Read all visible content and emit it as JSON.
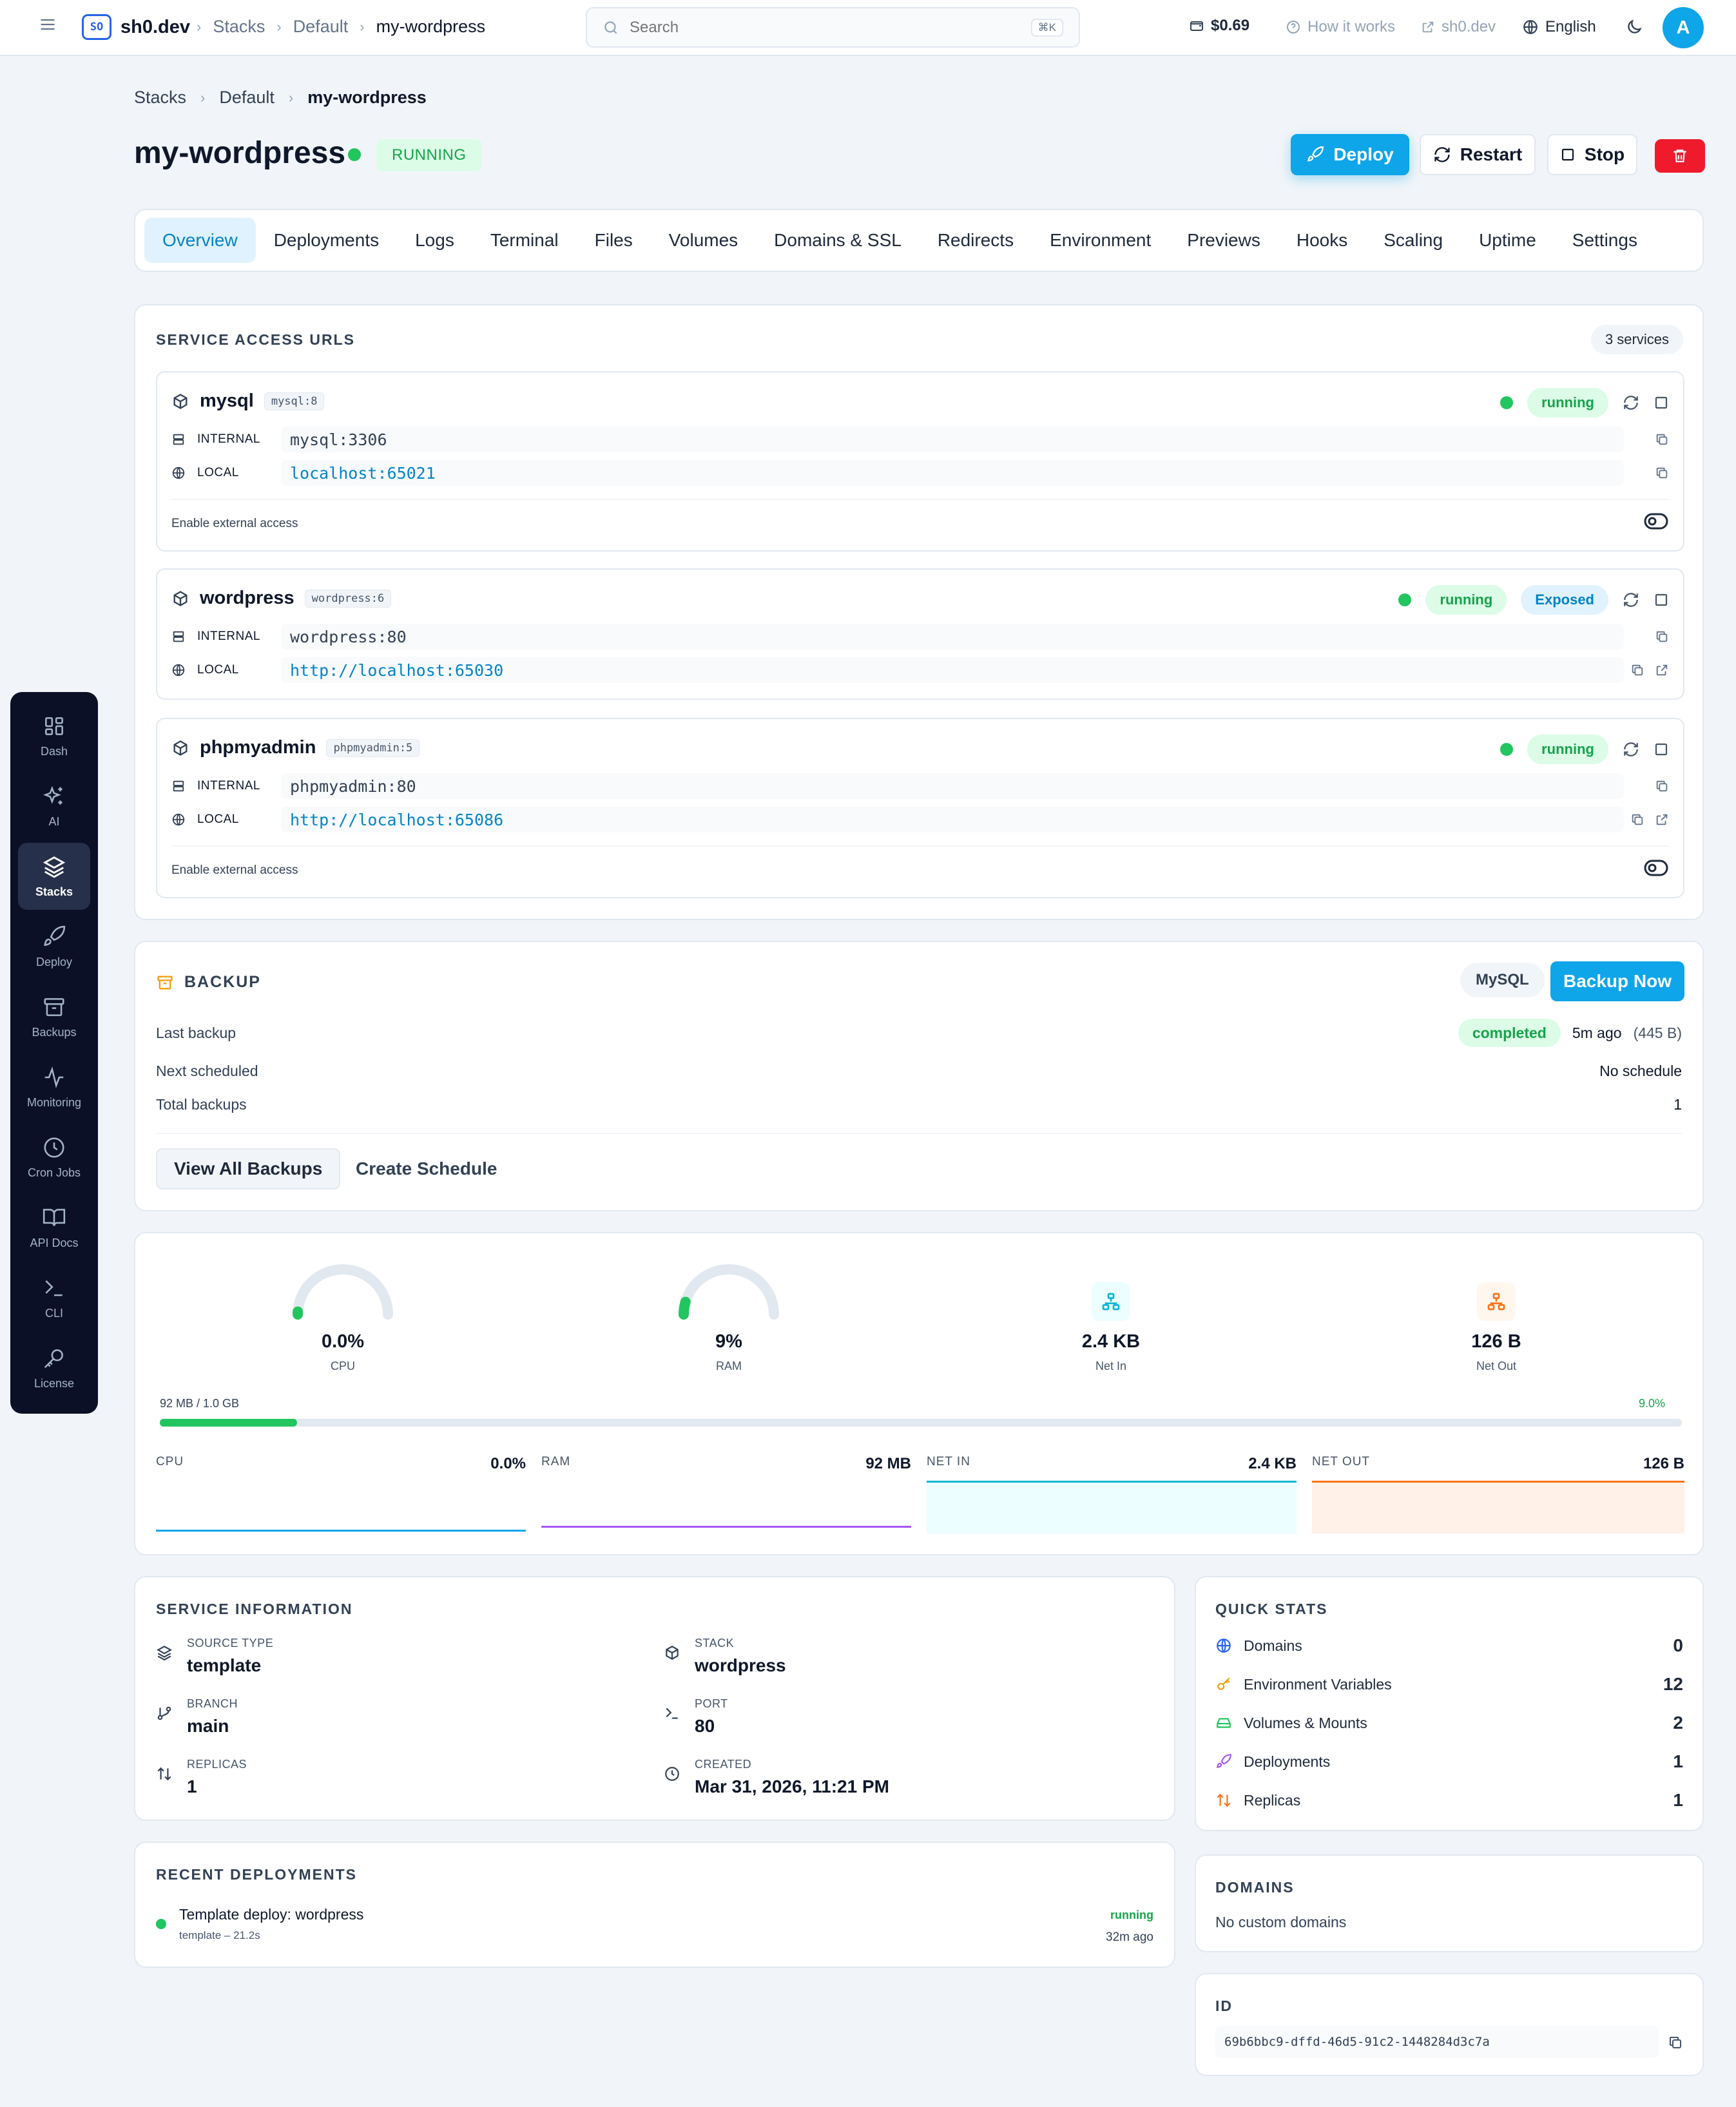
{
  "topbar": {
    "logo_text": "SO",
    "brand": "sh0.dev",
    "crumbs": [
      "Stacks",
      "Default",
      "my-wordpress"
    ],
    "search_placeholder": "Search",
    "search_shortcut": "⌘K",
    "balance": "$0.69",
    "how_it_works": "How it works",
    "site_link": "sh0.dev",
    "language": "English",
    "avatar_initial": "A"
  },
  "sidebar": {
    "items": [
      {
        "label": "Dash",
        "icon": "grid-icon"
      },
      {
        "label": "AI",
        "icon": "sparkles-icon"
      },
      {
        "label": "Stacks",
        "icon": "layers-icon",
        "active": true
      },
      {
        "label": "Deploy",
        "icon": "rocket-icon"
      },
      {
        "label": "Backups",
        "icon": "archive-icon"
      },
      {
        "label": "Monitoring",
        "icon": "activity-icon"
      },
      {
        "label": "Cron Jobs",
        "icon": "clock-icon"
      },
      {
        "label": "API Docs",
        "icon": "book-icon"
      },
      {
        "label": "CLI",
        "icon": "terminal-icon"
      },
      {
        "label": "License",
        "icon": "key-icon"
      }
    ]
  },
  "page": {
    "crumbs": [
      "Stacks",
      "Default",
      "my-wordpress"
    ],
    "title": "my-wordpress",
    "status": "RUNNING",
    "actions": {
      "deploy": "Deploy",
      "restart": "Restart",
      "stop": "Stop"
    }
  },
  "tabs": [
    "Overview",
    "Deployments",
    "Logs",
    "Terminal",
    "Files",
    "Volumes",
    "Domains & SSL",
    "Redirects",
    "Environment",
    "Previews",
    "Hooks",
    "Scaling",
    "Uptime",
    "Settings"
  ],
  "services": {
    "title": "SERVICE ACCESS URLS",
    "count": "3 services",
    "internal_label": "INTERNAL",
    "local_label": "LOCAL",
    "external_access": "Enable external access",
    "items": [
      {
        "name": "mysql",
        "image": "mysql:8",
        "status": "running",
        "internal": "mysql:3306",
        "local": "localhost:65021"
      },
      {
        "name": "wordpress",
        "image": "wordpress:6",
        "status": "running",
        "exposed": "Exposed",
        "internal": "wordpress:80",
        "local": "http://localhost:65030"
      },
      {
        "name": "phpmyadmin",
        "image": "phpmyadmin:5",
        "status": "running",
        "internal": "phpmyadmin:80",
        "local": "http://localhost:65086"
      }
    ]
  },
  "backup": {
    "title": "BACKUP",
    "engine": "MySQL",
    "backup_now": "Backup Now",
    "last_backup_label": "Last backup",
    "last_backup_status": "completed",
    "last_backup_time": "5m ago",
    "last_backup_size": "(445 B)",
    "next_label": "Next scheduled",
    "next_value": "No schedule",
    "total_label": "Total backups",
    "total_value": "1",
    "view_all": "View All Backups",
    "create_schedule": "Create Schedule"
  },
  "metrics": {
    "cpu": {
      "value": "0.0%",
      "label": "CPU",
      "fraction": 0.0
    },
    "ram": {
      "value": "9%",
      "label": "RAM",
      "fraction": 0.09
    },
    "net_in": {
      "value": "2.4 KB",
      "label": "Net In"
    },
    "net_out": {
      "value": "126 B",
      "label": "Net Out"
    },
    "memory_usage": "92 MB / 1.0 GB",
    "memory_percent": "9.0%",
    "memory_fraction": 0.09,
    "mini": [
      {
        "label": "CPU",
        "value": "0.0%",
        "color": "#0ea5e9"
      },
      {
        "label": "RAM",
        "value": "92 MB",
        "color": "#a855f7"
      },
      {
        "label": "NET IN",
        "value": "2.4 KB",
        "color": "#06b6d4"
      },
      {
        "label": "NET OUT",
        "value": "126 B",
        "color": "#f97316"
      }
    ]
  },
  "service_info": {
    "title": "SERVICE INFORMATION",
    "source_type_label": "SOURCE TYPE",
    "source_type": "template",
    "stack_label": "STACK",
    "stack": "wordpress",
    "branch_label": "BRANCH",
    "branch": "main",
    "port_label": "PORT",
    "port": "80",
    "replicas_label": "REPLICAS",
    "replicas": "1",
    "created_label": "CREATED",
    "created": "Mar 31, 2026, 11:21 PM"
  },
  "quick_stats": {
    "title": "QUICK STATS",
    "items": [
      {
        "label": "Domains",
        "value": "0"
      },
      {
        "label": "Environment Variables",
        "value": "12"
      },
      {
        "label": "Volumes & Mounts",
        "value": "2"
      },
      {
        "label": "Deployments",
        "value": "1"
      },
      {
        "label": "Replicas",
        "value": "1"
      }
    ]
  },
  "recent_deployments": {
    "title": "RECENT DEPLOYMENTS",
    "item": {
      "name": "Template deploy: wordpress",
      "meta": "template – 21.2s",
      "status": "running",
      "time": "32m ago"
    }
  },
  "domains": {
    "title": "DOMAINS",
    "empty": "No custom domains"
  },
  "id_card": {
    "title": "ID",
    "value": "69b6bbc9-dffd-46d5-91c2-1448284d3c7a"
  }
}
